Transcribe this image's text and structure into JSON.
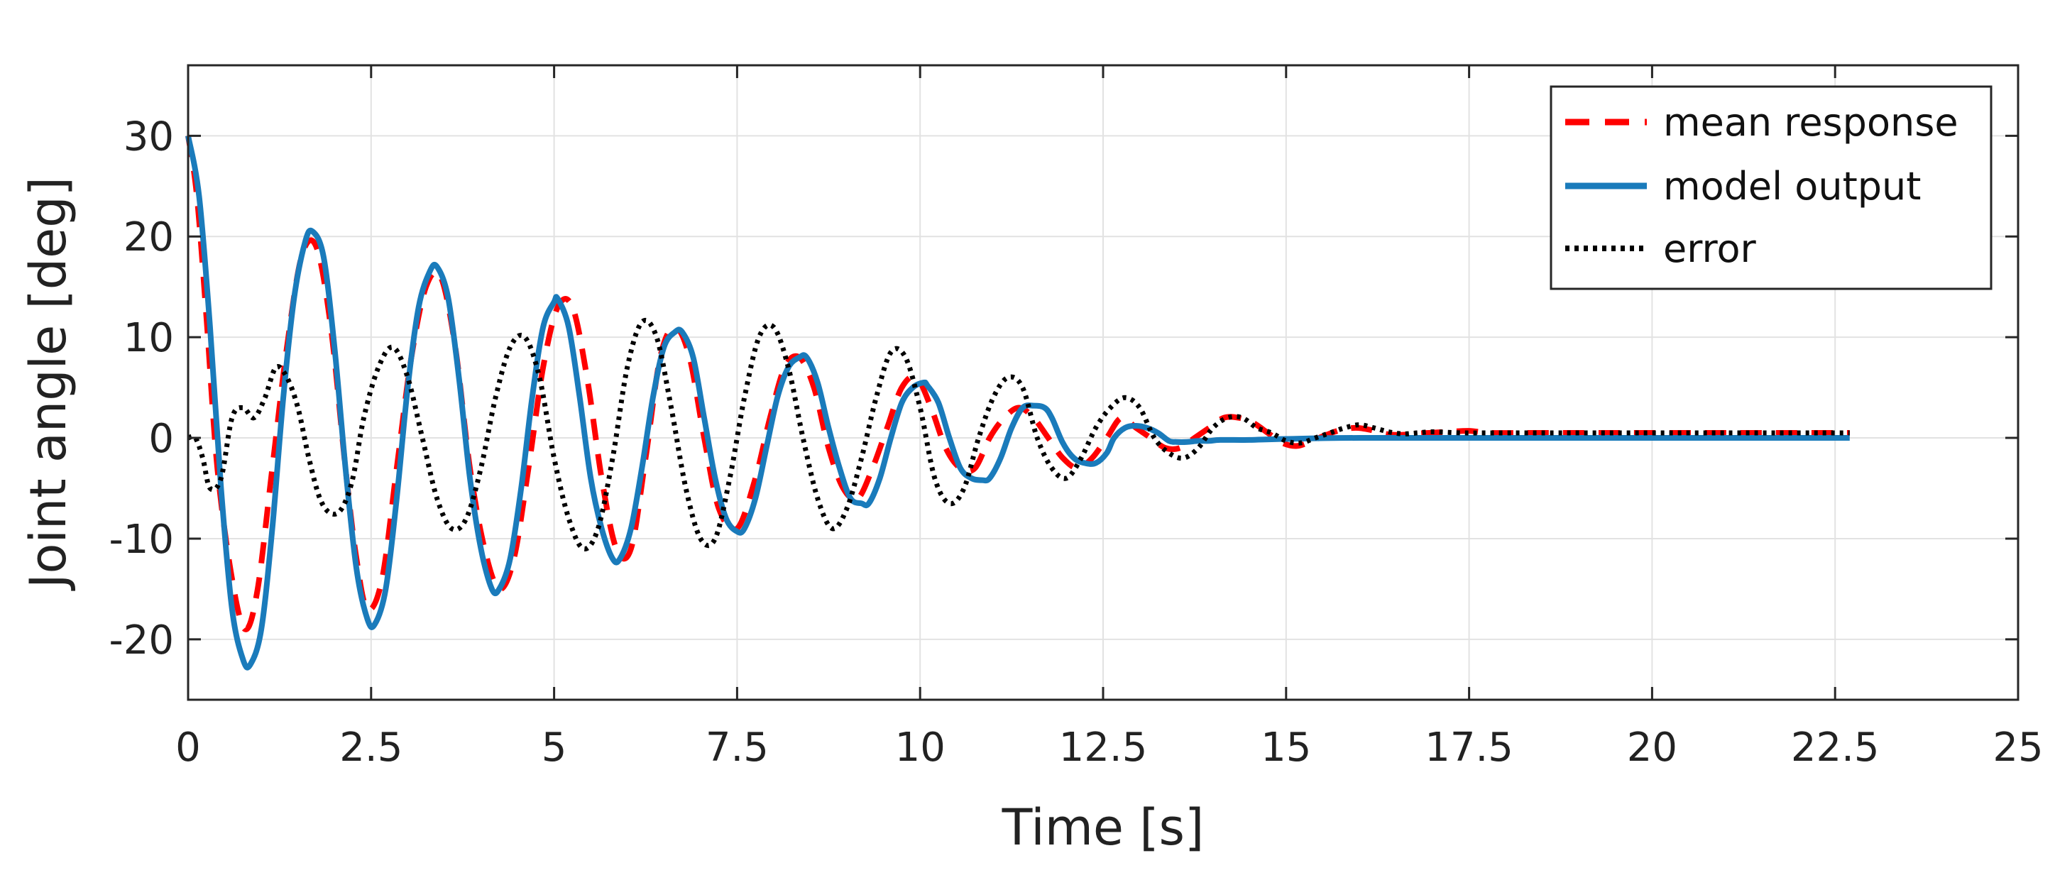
{
  "chart_data": {
    "type": "line",
    "title": "",
    "xlabel": "Time [s]",
    "ylabel": "Joint angle [deg]",
    "xlim": [
      0,
      25
    ],
    "ylim": [
      -26,
      37
    ],
    "xticks": [
      0,
      2.5,
      5,
      7.5,
      10,
      12.5,
      15,
      17.5,
      20,
      22.5,
      25
    ],
    "xtick_labels": [
      "0",
      "2.5",
      "5",
      "7.5",
      "10",
      "12.5",
      "15",
      "17.5",
      "20",
      "22.5",
      "25"
    ],
    "yticks": [
      -20,
      -10,
      0,
      10,
      20,
      30
    ],
    "ytick_labels": [
      "-20",
      "-10",
      "0",
      "10",
      "20",
      "30"
    ],
    "grid": true,
    "legend_position": "top-right",
    "series": [
      {
        "name": "mean response",
        "style": "dashed",
        "color": "#ff0000",
        "x": [
          0,
          0.12,
          0.25,
          0.4,
          0.6,
          0.78,
          0.95,
          1.15,
          1.35,
          1.55,
          1.75,
          1.95,
          2.15,
          2.3,
          2.45,
          2.65,
          2.85,
          3.05,
          3.25,
          3.45,
          3.65,
          3.85,
          4.05,
          4.25,
          4.45,
          4.65,
          4.85,
          5.05,
          5.25,
          5.45,
          5.65,
          5.85,
          6.05,
          6.25,
          6.45,
          6.65,
          6.85,
          7.05,
          7.25,
          7.5,
          7.75,
          7.95,
          8.15,
          8.35,
          8.55,
          8.75,
          8.95,
          9.15,
          9.35,
          9.55,
          9.75,
          9.95,
          10.15,
          10.35,
          10.55,
          10.75,
          10.95,
          11.15,
          11.35,
          11.55,
          11.75,
          11.95,
          12.15,
          12.35,
          12.55,
          12.75,
          12.95,
          13.15,
          13.35,
          13.55,
          13.75,
          13.95,
          14.15,
          14.35,
          14.55,
          14.75,
          14.95,
          15.15,
          15.35,
          15.55,
          15.75,
          15.95,
          16.15,
          16.35,
          16.55,
          16.75,
          16.95,
          17.2,
          17.5,
          17.8,
          18.5,
          19.5,
          20.5,
          21.5,
          22.7
        ],
        "values": [
          30,
          24,
          12,
          -3,
          -14,
          -19,
          -15,
          -3,
          9,
          18,
          19,
          11,
          -3,
          -12,
          -17,
          -14,
          -3,
          8,
          15,
          16,
          9,
          -3,
          -11,
          -15,
          -12,
          -3,
          7,
          13,
          13,
          6,
          -4,
          -11,
          -11,
          -2,
          8,
          11,
          8,
          0,
          -7,
          -9,
          -4,
          2,
          7,
          8,
          5,
          -1,
          -5,
          -6,
          -3,
          1,
          5,
          6,
          3,
          -1,
          -3,
          -3,
          0,
          2,
          3,
          2,
          0,
          -2,
          -3,
          -2,
          0,
          2,
          1,
          0,
          -1,
          -1,
          0,
          1,
          2,
          2,
          1.5,
          0.5,
          -0.5,
          -0.8,
          -0.3,
          0.3,
          0.8,
          1.0,
          0.8,
          0.4,
          0.3,
          0.4,
          0.5,
          0.6,
          0.7,
          0.5,
          0.5,
          0.5,
          0.5,
          0.5,
          0.5
        ]
      },
      {
        "name": "model output",
        "style": "solid",
        "color": "#1a7bbb",
        "x": [
          0,
          0.15,
          0.3,
          0.45,
          0.6,
          0.75,
          0.85,
          1.0,
          1.15,
          1.3,
          1.45,
          1.6,
          1.7,
          1.85,
          2.0,
          2.15,
          2.3,
          2.45,
          2.55,
          2.7,
          2.85,
          3.0,
          3.15,
          3.3,
          3.4,
          3.55,
          3.7,
          3.85,
          4.0,
          4.15,
          4.25,
          4.4,
          4.55,
          4.7,
          4.85,
          5.0,
          5.05,
          5.2,
          5.35,
          5.5,
          5.65,
          5.8,
          5.9,
          6.05,
          6.2,
          6.35,
          6.5,
          6.65,
          6.75,
          6.9,
          7.05,
          7.2,
          7.35,
          7.5,
          7.6,
          7.75,
          7.9,
          8.05,
          8.2,
          8.35,
          8.45,
          8.6,
          8.75,
          8.9,
          9.05,
          9.2,
          9.3,
          9.45,
          9.6,
          9.75,
          9.9,
          10.05,
          10.1,
          10.25,
          10.4,
          10.55,
          10.7,
          10.85,
          10.95,
          11.1,
          11.25,
          11.4,
          11.55,
          11.7,
          11.8,
          11.95,
          12.1,
          12.25,
          12.4,
          12.55,
          12.65,
          12.8,
          12.95,
          13.1,
          13.25,
          13.4,
          13.5,
          13.65,
          13.8,
          13.95,
          14.1,
          14.5,
          15.0,
          16.0,
          18.0,
          20.0,
          22.7
        ],
        "values": [
          30,
          24,
          11,
          -5,
          -17,
          -22,
          -22.5,
          -19,
          -9,
          4,
          14,
          19.5,
          20.5,
          18,
          9,
          -3,
          -13,
          -18,
          -18.5,
          -15,
          -6,
          5,
          13,
          16.5,
          17,
          14,
          6,
          -4,
          -11,
          -15,
          -15,
          -12,
          -5,
          4,
          11,
          13.5,
          13.8,
          11,
          4,
          -4,
          -9,
          -12,
          -12,
          -9,
          -3,
          4,
          9,
          10.5,
          10.5,
          8,
          2,
          -4,
          -8,
          -9.3,
          -9,
          -6,
          -1,
          4,
          7,
          8,
          8,
          5.5,
          1,
          -3,
          -6,
          -6.5,
          -6.5,
          -4,
          0,
          3.5,
          5,
          5.5,
          5.2,
          3.5,
          0,
          -3,
          -4,
          -4.2,
          -4,
          -2,
          1,
          3,
          3.2,
          3,
          2,
          -0.5,
          -2,
          -2.5,
          -2.5,
          -1.5,
          0,
          1,
          1.2,
          1,
          0.5,
          -0.3,
          -0.4,
          -0.4,
          -0.3,
          -0.3,
          -0.2,
          -0.2,
          -0.1,
          0,
          0,
          0,
          0
        ]
      },
      {
        "name": "error",
        "style": "dotted",
        "color": "#000000",
        "x": [
          0,
          0.1,
          0.2,
          0.3,
          0.45,
          0.6,
          0.75,
          0.9,
          1.05,
          1.2,
          1.35,
          1.5,
          1.65,
          1.8,
          1.95,
          2.1,
          2.25,
          2.4,
          2.6,
          2.8,
          3.0,
          3.2,
          3.4,
          3.6,
          3.8,
          4.0,
          4.2,
          4.4,
          4.6,
          4.8,
          5.0,
          5.2,
          5.4,
          5.6,
          5.8,
          6.0,
          6.2,
          6.4,
          6.6,
          6.8,
          7.0,
          7.2,
          7.4,
          7.6,
          7.8,
          8.0,
          8.2,
          8.4,
          8.6,
          8.8,
          9.0,
          9.2,
          9.4,
          9.6,
          9.8,
          10.0,
          10.2,
          10.4,
          10.6,
          10.8,
          11.0,
          11.2,
          11.4,
          11.6,
          11.8,
          12.0,
          12.2,
          12.4,
          12.6,
          12.8,
          13.0,
          13.2,
          13.4,
          13.6,
          13.8,
          14.0,
          14.2,
          14.4,
          14.6,
          14.8,
          15.0,
          15.2,
          15.4,
          15.6,
          15.8,
          16.0,
          16.2,
          16.4,
          16.6,
          16.8,
          17.0,
          17.4,
          17.8,
          18.5,
          19.5,
          20.5,
          21.5,
          22.7
        ],
        "values": [
          0,
          0,
          -2,
          -5,
          -4,
          2,
          3,
          2,
          4,
          7,
          6,
          3,
          -2,
          -6,
          -7.5,
          -7,
          -4,
          2,
          7,
          9,
          6,
          0,
          -6,
          -9,
          -8,
          -3,
          4,
          9,
          10,
          6,
          -2,
          -8,
          -11,
          -9,
          -2,
          7,
          11.5,
          10,
          3,
          -5,
          -10,
          -10,
          -4,
          4,
          10,
          11,
          7,
          0,
          -6,
          -9,
          -7,
          -2,
          4,
          8.5,
          8,
          3,
          -4,
          -6.5,
          -5,
          0,
          4,
          6,
          5,
          0,
          -3,
          -4,
          -2,
          1,
          3,
          4,
          3,
          0,
          -1.5,
          -2,
          -1,
          1,
          2,
          2,
          1,
          0.5,
          -0.3,
          -0.5,
          0,
          0.5,
          1,
          1.3,
          1,
          0.6,
          0.4,
          0.5,
          0.6,
          0.5,
          0.5,
          0.5,
          0.5,
          0.5,
          0.5,
          0.5
        ]
      }
    ]
  }
}
